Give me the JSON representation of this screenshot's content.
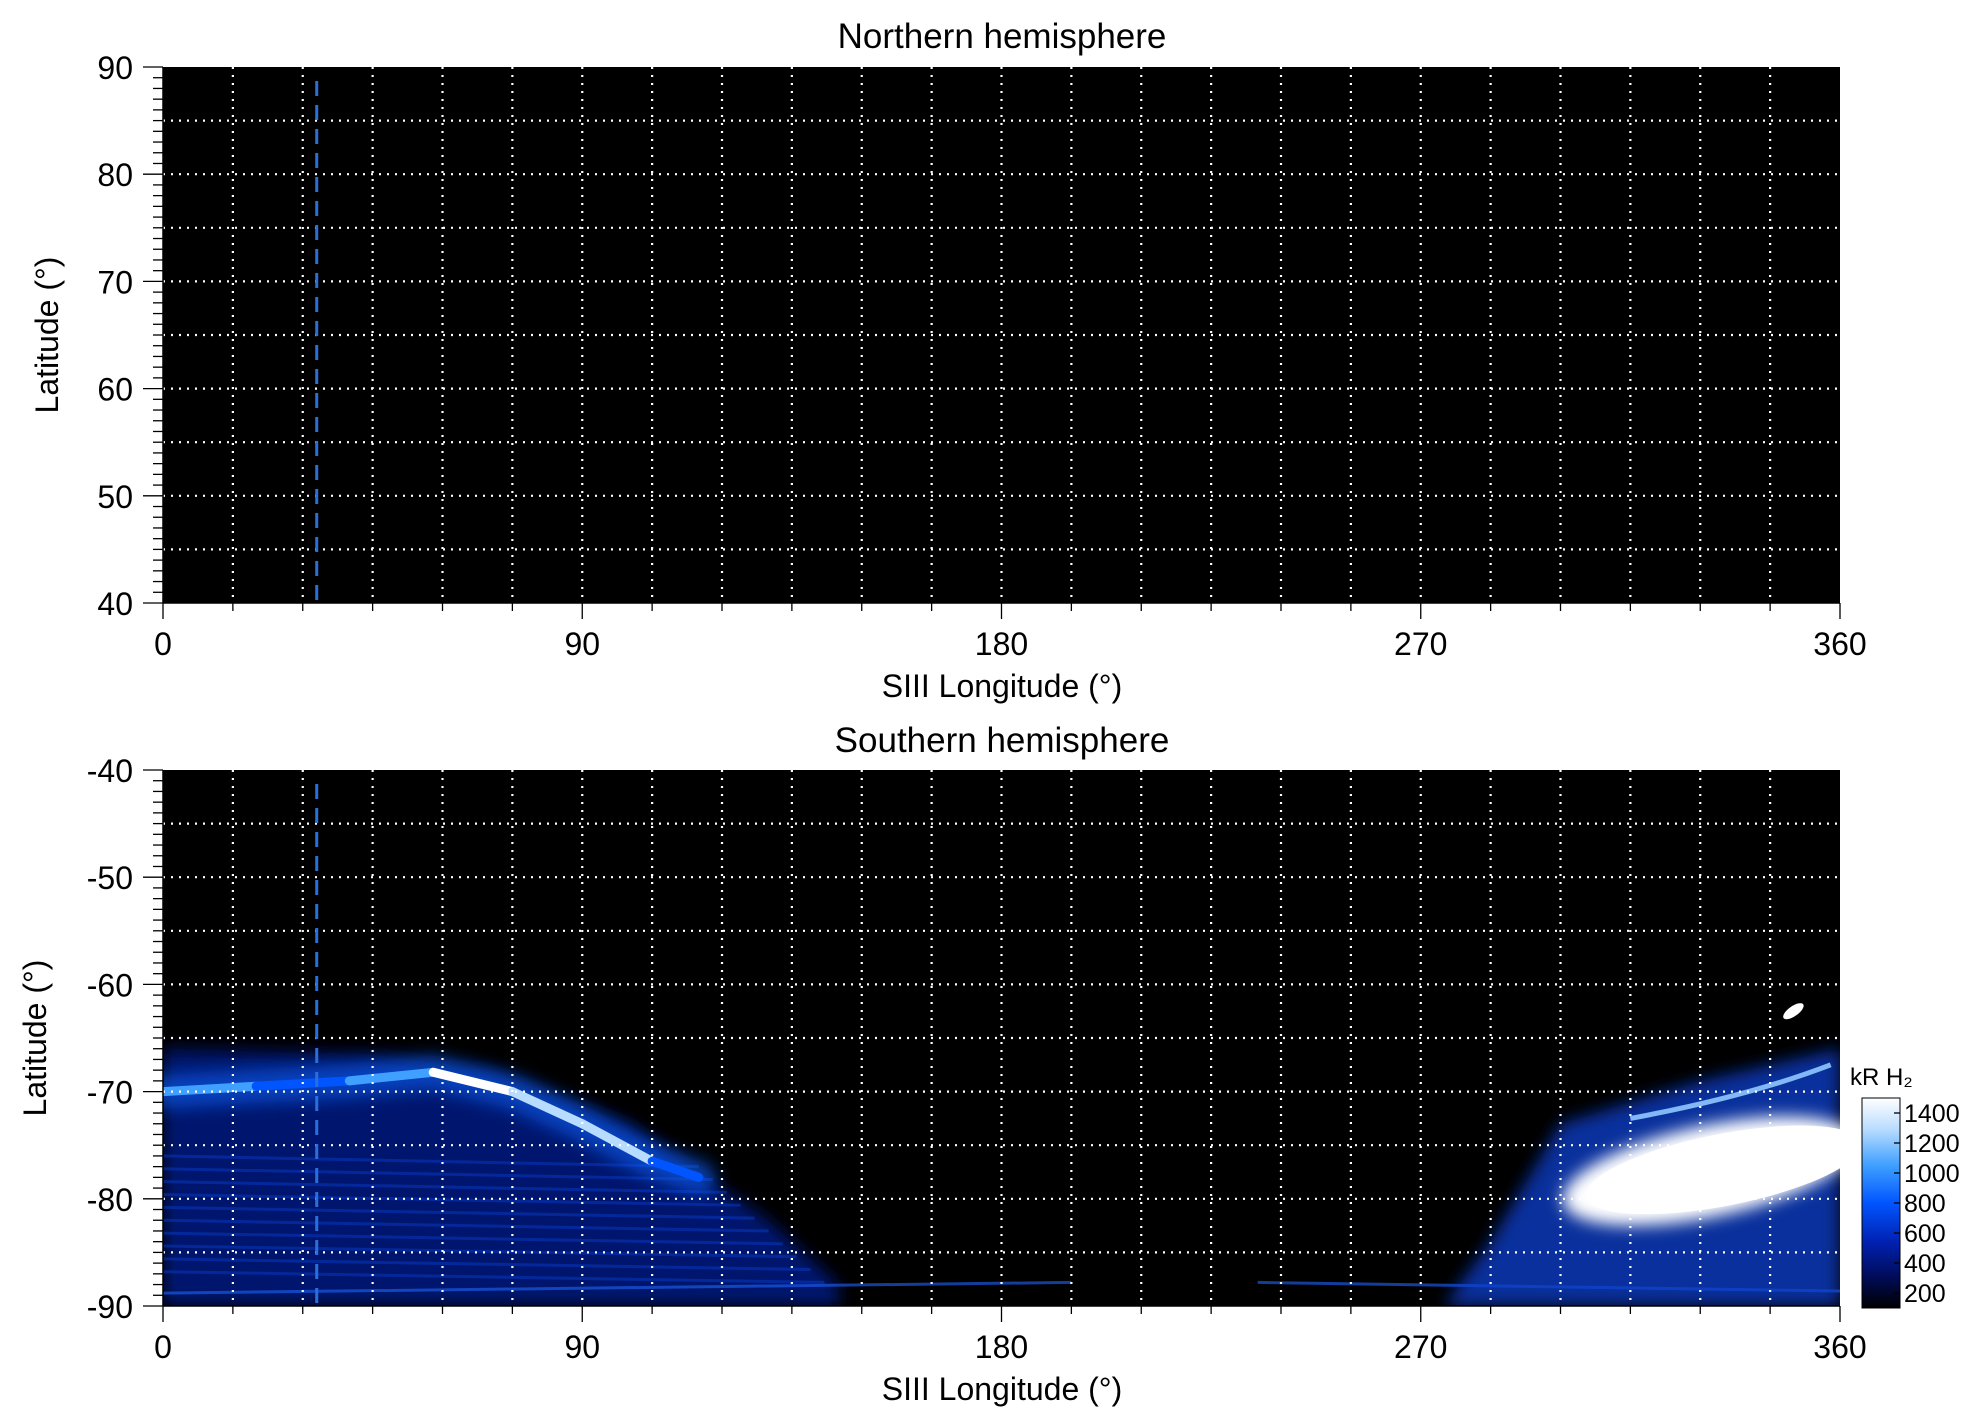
{
  "chart_data": [
    {
      "type": "heatmap",
      "title": "Northern hemisphere",
      "xlabel": "SIII Longitude (°)",
      "ylabel": "Latitude (°)",
      "xlim": [
        0,
        360
      ],
      "ylim": [
        40,
        90
      ],
      "xticks": [
        0,
        90,
        180,
        270,
        360
      ],
      "xtick_labels": [
        "0",
        "90",
        "180",
        "270",
        "360"
      ],
      "yticks": [
        40,
        50,
        60,
        70,
        80,
        90
      ],
      "ytick_labels": [
        "40",
        "50",
        "60",
        "70",
        "80",
        "90"
      ],
      "grid": "on (dotted, every 15° longitude, every 5° latitude)",
      "marker_longitude": 33,
      "emission": "none visible (black)"
    },
    {
      "type": "heatmap",
      "title": "Southern hemisphere",
      "xlabel": "SIII Longitude (°)",
      "ylabel": "Latitude (°)",
      "xlim": [
        0,
        360
      ],
      "ylim": [
        -90,
        -40
      ],
      "xticks": [
        0,
        90,
        180,
        270,
        360
      ],
      "xtick_labels": [
        "0",
        "90",
        "180",
        "270",
        "360"
      ],
      "yticks": [
        -90,
        -80,
        -70,
        -60,
        -50,
        -40
      ],
      "ytick_labels": [
        "-90",
        "-80",
        "-70",
        "-60",
        "-50",
        "-40"
      ],
      "grid": "on (dotted, every 15° longitude, every 5° latitude)",
      "marker_longitude": 33,
      "colorbar": {
        "label": "kR H₂",
        "range": [
          100,
          1500
        ],
        "ticks": [
          200,
          400,
          600,
          800,
          1000,
          1200,
          1400
        ],
        "tick_labels": [
          "200",
          "400",
          "600",
          "800",
          "1000",
          "1200",
          "1400"
        ],
        "colors": [
          "#000000",
          "#000c5a",
          "#0022b4",
          "#0055ff",
          "#3fa0ff",
          "#b8dcff",
          "#ffffff"
        ]
      },
      "main_oval": [
        {
          "lon": 0,
          "lat": -70.0,
          "intensity": 1400
        },
        {
          "lon": 20,
          "lat": -69.5,
          "intensity": 700
        },
        {
          "lon": 40,
          "lat": -69.0,
          "intensity": 800
        },
        {
          "lon": 58,
          "lat": -68.2,
          "intensity": 1400
        },
        {
          "lon": 75,
          "lat": -70.0,
          "intensity": 1400
        },
        {
          "lon": 90,
          "lat": -73.0,
          "intensity": 1300
        },
        {
          "lon": 105,
          "lat": -76.5,
          "intensity": 1000
        },
        {
          "lon": 115,
          "lat": -78.0,
          "intensity": 700
        }
      ],
      "bright_region": {
        "lon_range": [
          300,
          360
        ],
        "lat_range": [
          -82,
          -72
        ],
        "intensity": 1400
      },
      "spot": {
        "lon": 350,
        "lat": -62.5,
        "intensity": 1400
      }
    }
  ]
}
